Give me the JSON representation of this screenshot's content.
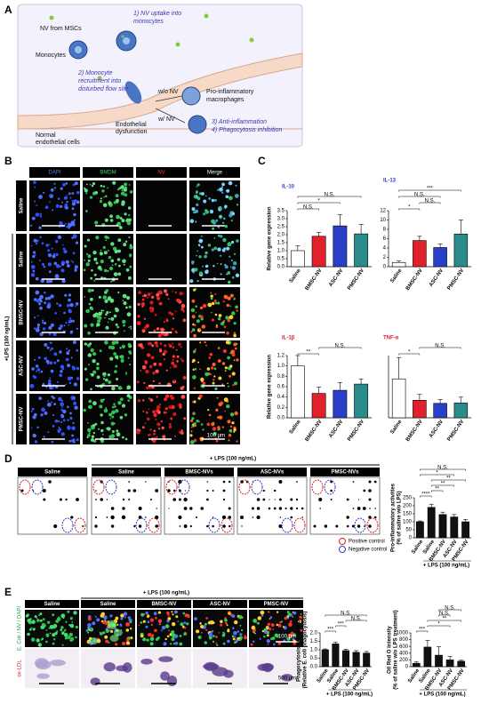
{
  "figure": {
    "panel_labels": [
      "A",
      "B",
      "C",
      "D",
      "E"
    ],
    "panel_a": {
      "nv_source": "NV from MSCs",
      "uptake": [
        "1) NV uptake into",
        "monocytes"
      ],
      "monocytes": "Monocytes",
      "recruitment": [
        "2) Monocyte",
        "recruitment into",
        "disturbed flow site"
      ],
      "without_nv": "w/o NV",
      "macrophages": [
        "Pro-inflammatory",
        "macrophages"
      ],
      "with_nv": "w/ NV",
      "effects": [
        "3) Anti-inflammation",
        "4) Phagocytosis inhibition"
      ],
      "normal": [
        "Normal",
        "endothelial cells"
      ],
      "dysfunction": [
        "Endothelial",
        "dysfunction"
      ]
    },
    "panel_b": {
      "columns": [
        "DAPI",
        "BMDM",
        "NV",
        "Merge"
      ],
      "rows": [
        "Saline",
        "Saline",
        "BMSC-NV",
        "ASC-NV",
        "PMSC-NV"
      ],
      "group": "+LPS (100 ng/mL)",
      "scale": "100 μm"
    },
    "panel_d": {
      "header": "+ LPS (100 ng/mL)",
      "arrays": [
        "Saline",
        "Saline",
        "BMSC-NVs",
        "ASC-NVs",
        "PMSC-NVs"
      ],
      "legend": [
        "Positive control",
        "Negative control"
      ]
    },
    "panel_e": {
      "header": "+ LPS (100 ng/mL)",
      "columns": [
        "Saline",
        "Saline",
        "BMSC-NV",
        "ASC-NV",
        "PMSC-NV"
      ],
      "rows": [
        "E. Coli / NV / DAPI",
        "ox-LDL"
      ],
      "scales": [
        "100 μm",
        "500 μm"
      ]
    }
  },
  "chart_data": [
    {
      "type": "bar",
      "title": "IL-10",
      "title_color": "#2a3fc8",
      "ylabel": "Relative gene expression",
      "categories": [
        "Saline",
        "BMSC-NV",
        "ASC-NV",
        "PMSC-NV"
      ],
      "values": [
        1.0,
        1.9,
        2.55,
        2.05
      ],
      "errors": [
        0.3,
        0.25,
        0.7,
        0.6
      ],
      "colors": [
        "#ffffff",
        "#e0202a",
        "#2a3fc8",
        "#2a8c8a"
      ],
      "ylim": [
        0,
        3.5
      ],
      "yticks": [
        {
          "value": 0,
          "label": "0.0"
        },
        0.5,
        {
          "value": 1,
          "label": "1.0"
        },
        1.5,
        {
          "value": 2,
          "label": "2.0"
        },
        2.5,
        {
          "value": 3,
          "label": "3.0"
        },
        3.5
      ],
      "annotations": [
        "N.S.",
        "*",
        "N.S."
      ]
    },
    {
      "type": "bar",
      "title": "IL-13",
      "title_color": "#2a3fc8",
      "categories": [
        "Saline",
        "BMSC-NV",
        "ASC-NV",
        "PMSC-NV"
      ],
      "values": [
        0.9,
        5.6,
        4.1,
        7.0
      ],
      "errors": [
        0.3,
        0.9,
        0.8,
        3.0
      ],
      "colors": [
        "#ffffff",
        "#e0202a",
        "#2a3fc8",
        "#2a8c8a"
      ],
      "ylim": [
        0,
        12
      ],
      "yticks": [
        0,
        2,
        4,
        6,
        8,
        10,
        12
      ],
      "annotations": [
        "*",
        "N.S.",
        "N.S.",
        "***"
      ]
    },
    {
      "type": "bar",
      "title": "IL-1β",
      "title_color": "#e0202a",
      "ylabel": "Relative gene expression",
      "categories": [
        "Saline",
        "BMSC-NV",
        "ASC-NV",
        "PMSC-NV"
      ],
      "values": [
        1.0,
        0.47,
        0.53,
        0.65
      ],
      "errors": [
        0.2,
        0.12,
        0.15,
        0.1
      ],
      "colors": [
        "#ffffff",
        "#e0202a",
        "#2a3fc8",
        "#2a8c8a"
      ],
      "ylim": [
        0,
        1.2
      ],
      "yticks": [
        {
          "value": 0,
          "label": "0.0"
        },
        0.2,
        0.4,
        0.6,
        0.8,
        {
          "value": 1,
          "label": "1.0"
        },
        1.2
      ],
      "annotations": [
        "**",
        "N.S."
      ]
    },
    {
      "type": "bar",
      "title": "TNF-α",
      "title_color": "#e0202a",
      "categories": [
        "Saline",
        "BMSC-NV",
        "ASC-NV",
        "PMSC-NV"
      ],
      "values": [
        1.0,
        0.45,
        0.37,
        0.38
      ],
      "errors": [
        0.55,
        0.15,
        0.1,
        0.15
      ],
      "colors": [
        "#ffffff",
        "#e0202a",
        "#2a3fc8",
        "#2a8c8a"
      ],
      "ylim": [
        0,
        1.6
      ],
      "yticks": [],
      "annotations": [
        "*",
        "N.S."
      ]
    },
    {
      "type": "bar",
      "ylabel": [
        "Pro-inflammatory activities",
        "(% of saline w/o LPS)"
      ],
      "xlabel": "+ LPS (100 ng/mL)",
      "categories": [
        "Saline",
        "Saline",
        "BMSC-NV",
        "ASC-NV",
        "PMSC-NV"
      ],
      "values": [
        100,
        190,
        145,
        130,
        100
      ],
      "errors": [
        5,
        20,
        15,
        15,
        15
      ],
      "colors": [
        "#111111",
        "#111111",
        "#111111",
        "#111111",
        "#111111"
      ],
      "ylim": [
        0,
        250
      ],
      "yticks": [
        0,
        50,
        100,
        150,
        200,
        250
      ],
      "annotations": [
        "****",
        "**",
        "**",
        "**",
        "*",
        "N.S."
      ]
    },
    {
      "type": "bar",
      "ylabel": [
        "Phagocytosis assay (AU)",
        "(Relative E. coli phagocytosis)"
      ],
      "xlabel": "+ LPS (100 ng/mL)",
      "categories": [
        "Saline",
        "Saline",
        "BMSC-NV",
        "ASC-NV",
        "PMSC-NV"
      ],
      "values": [
        1.0,
        1.35,
        0.95,
        0.85,
        0.8
      ],
      "errors": [
        0.05,
        0.1,
        0.08,
        0.1,
        0.1
      ],
      "colors": [
        "#111111",
        "#111111",
        "#111111",
        "#111111",
        "#111111"
      ],
      "ylim": [
        0,
        2
      ],
      "yticks": [
        {
          "value": 0,
          "label": "0.0"
        },
        0.5,
        {
          "value": 1,
          "label": "1.0"
        },
        1.5,
        {
          "value": 2,
          "label": "2.0"
        }
      ],
      "annotations": [
        "***",
        "***",
        "N.S.",
        "N.S."
      ]
    },
    {
      "type": "bar",
      "ylabel": [
        "Oil Red O intensity",
        "(% of saline w/o LPS treatment)"
      ],
      "xlabel": "+ LPS (100 ng/mL)",
      "categories": [
        "Saline",
        "Saline",
        "BMSC-NV",
        "ASC-NV",
        "PMSC-NV"
      ],
      "values": [
        100,
        580,
        340,
        200,
        160
      ],
      "errors": [
        40,
        200,
        250,
        100,
        30
      ],
      "colors": [
        "#111111",
        "#111111",
        "#111111",
        "#111111",
        "#111111"
      ],
      "ylim": [
        0,
        1000
      ],
      "yticks": [
        0,
        200,
        400,
        600,
        800,
        1000
      ],
      "annotations": [
        "***",
        "*",
        "**",
        "N.S.",
        "N.S."
      ]
    }
  ]
}
